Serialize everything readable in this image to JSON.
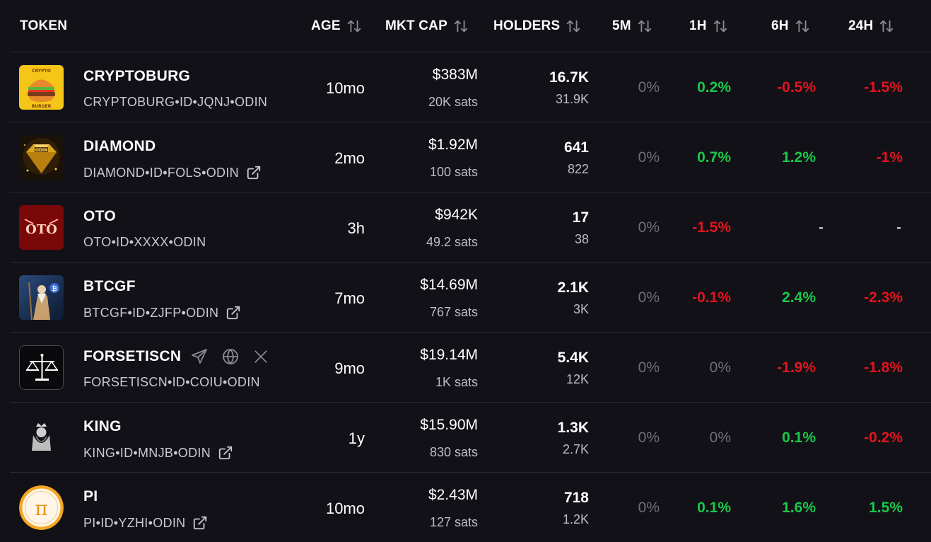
{
  "headers": {
    "token": "TOKEN",
    "age": "AGE",
    "mkt_cap": "MKT CAP",
    "holders": "HOLDERS",
    "m5": "5M",
    "h1": "1H",
    "h6": "6H",
    "h24": "24H"
  },
  "colors": {
    "positive": "#19c94b",
    "negative": "#e3141f",
    "neutral": "#6f6f77",
    "background": "#121117"
  },
  "rows": [
    {
      "name": "CRYPTOBURG",
      "ticker": "CRYPTOBURG•ID•JQNJ•ODIN",
      "age": "10mo",
      "mktcap": "$383M",
      "sats": "20K sats",
      "holders": "16.7K",
      "holders_sub": "31.9K",
      "m5": "0%",
      "h1": "0.2%",
      "h6": "-0.5%",
      "h24": "-1.5%",
      "logo_text_top": "CRYPTO",
      "logo_text_bottom": "BURGER",
      "icon": "burger-logo"
    },
    {
      "name": "DIAMOND",
      "ticker": "DIAMOND•ID•FOLS•ODIN",
      "age": "2mo",
      "mktcap": "$1.92M",
      "sats": "100 sats",
      "holders": "641",
      "holders_sub": "822",
      "m5": "0%",
      "h1": "0.7%",
      "h6": "1.2%",
      "h24": "-1%",
      "logo_text": "ODIN",
      "icon": "diamond-logo"
    },
    {
      "name": "OTO",
      "ticker": "OTO•ID•XXXX•ODIN",
      "age": "3h",
      "mktcap": "$942K",
      "sats": "49.2 sats",
      "holders": "17",
      "holders_sub": "38",
      "m5": "0%",
      "h1": "-1.5%",
      "h6": "-",
      "h24": "-",
      "logo_text": "OTO",
      "icon": "oto-logo"
    },
    {
      "name": "BTCGF",
      "ticker": "BTCGF•ID•ZJFP•ODIN",
      "age": "7mo",
      "mktcap": "$14.69M",
      "sats": "767 sats",
      "holders": "2.1K",
      "holders_sub": "3K",
      "m5": "0%",
      "h1": "-0.1%",
      "h6": "2.4%",
      "h24": "-2.3%",
      "icon": "wizard-logo"
    },
    {
      "name": "FORSETISCN",
      "ticker": "FORSETISCN•ID•COIU•ODIN",
      "age": "9mo",
      "mktcap": "$19.14M",
      "sats": "1K sats",
      "holders": "5.4K",
      "holders_sub": "12K",
      "m5": "0%",
      "h1": "0%",
      "h6": "-1.9%",
      "h24": "-1.8%",
      "icon": "scales-logo"
    },
    {
      "name": "KING",
      "ticker": "KING•ID•MNJB•ODIN",
      "age": "1y",
      "mktcap": "$15.90M",
      "sats": "830 sats",
      "holders": "1.3K",
      "holders_sub": "2.7K",
      "m5": "0%",
      "h1": "0%",
      "h6": "0.1%",
      "h24": "-0.2%",
      "icon": "king-logo"
    },
    {
      "name": "PI",
      "ticker": "PI•ID•YZHI•ODIN",
      "age": "10mo",
      "mktcap": "$2.43M",
      "sats": "127 sats",
      "holders": "718",
      "holders_sub": "1.2K",
      "m5": "0%",
      "h1": "0.1%",
      "h6": "1.6%",
      "h24": "1.5%",
      "logo_text": "π",
      "icon": "pi-logo"
    }
  ]
}
